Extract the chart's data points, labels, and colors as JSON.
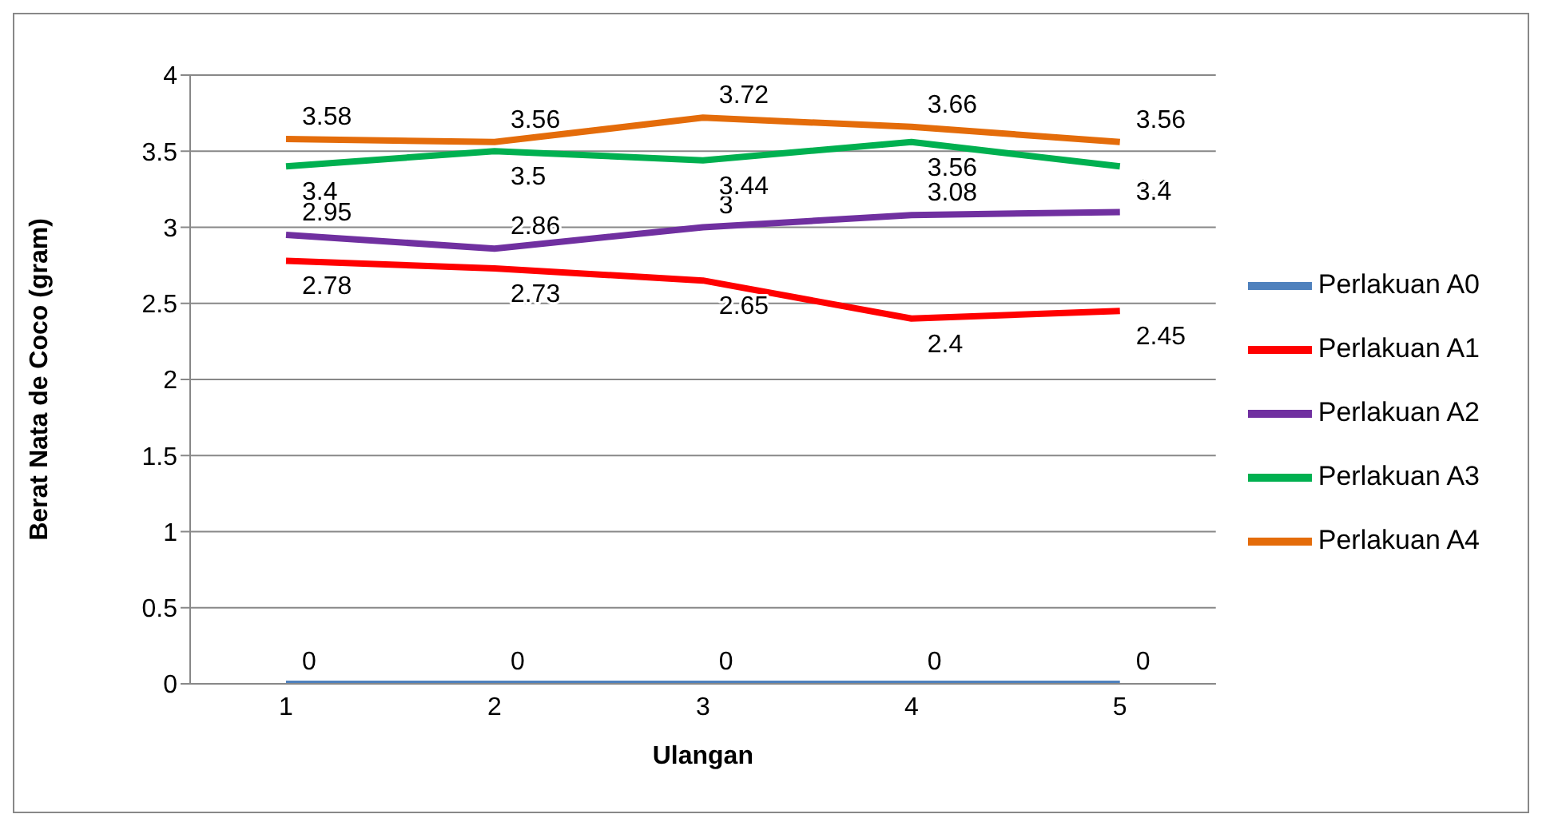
{
  "chart_data": {
    "type": "line",
    "xlabel": "Ulangan",
    "ylabel": "Berat Nata de Coco (gram)",
    "categories": [
      "1",
      "2",
      "3",
      "4",
      "5"
    ],
    "series": [
      {
        "name": "Perlakuan A0",
        "color": "#4f81bd",
        "values": [
          0,
          0,
          0,
          0,
          0
        ]
      },
      {
        "name": "Perlakuan A1",
        "color": "#ff0000",
        "values": [
          2.78,
          2.73,
          2.65,
          2.4,
          2.45
        ]
      },
      {
        "name": "Perlakuan A2",
        "color": "#7030a0",
        "values": [
          2.95,
          2.86,
          3,
          3.08,
          3.1
        ]
      },
      {
        "name": "Perlakuan A3",
        "color": "#00b050",
        "values": [
          3.4,
          3.5,
          3.44,
          3.56,
          3.4
        ]
      },
      {
        "name": "Perlakuan A4",
        "color": "#e46c0a",
        "values": [
          3.58,
          3.56,
          3.72,
          3.66,
          3.56
        ]
      }
    ],
    "ylim": [
      0,
      4
    ],
    "yticks": [
      0,
      0.5,
      1,
      1.5,
      2,
      2.5,
      3,
      3.5,
      4
    ],
    "grid": "y",
    "legend": "right",
    "marker": "none",
    "data_labels": true
  }
}
